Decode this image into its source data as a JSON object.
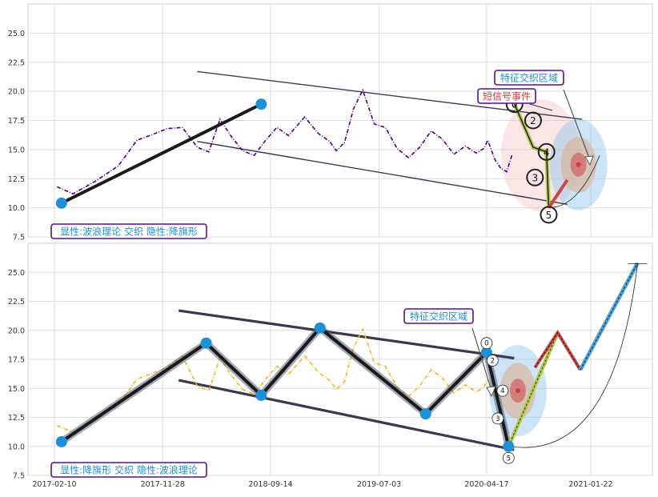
{
  "chart_data": [
    {
      "type": "line",
      "panel": "top",
      "ylim": [
        7.5,
        27.5
      ],
      "y_ticks": [
        "7.5",
        "10.0",
        "12.5",
        "15.0",
        "17.5",
        "20.0",
        "22.5",
        "25.0"
      ],
      "grid": true,
      "series_color": "#4b0082",
      "series": [
        {
          "style": "dash-dot",
          "x": [
            "2017-02-17",
            "2017-04-01",
            "2017-06-01",
            "2017-08-01",
            "2017-09-20",
            "2017-11-01",
            "2017-12-10",
            "2018-01-20",
            "2018-03-01",
            "2018-04-01",
            "2018-05-01",
            "2018-06-01",
            "2018-07-01",
            "2018-08-01",
            "2018-09-01",
            "2018-10-01",
            "2018-11-01",
            "2018-12-15",
            "2019-01-20",
            "2019-02-20",
            "2019-03-10",
            "2019-04-01",
            "2019-04-25",
            "2019-05-20",
            "2019-06-20",
            "2019-07-20",
            "2019-08-20",
            "2019-09-20",
            "2019-10-20",
            "2019-11-20",
            "2019-12-20",
            "2020-01-20",
            "2020-02-20",
            "2020-03-20",
            "2020-04-10",
            "2020-04-20",
            "2020-05-10",
            "2020-05-25",
            "2020-06-10",
            "2020-06-25"
          ],
          "y": [
            11.8,
            11.2,
            12.3,
            13.6,
            15.8,
            16.3,
            16.8,
            16.9,
            15.2,
            14.8,
            17.6,
            16.1,
            14.9,
            14.5,
            15.8,
            16.9,
            16.2,
            17.8,
            16.4,
            15.7,
            14.9,
            15.6,
            18.5,
            20.1,
            17.2,
            16.9,
            15.1,
            14.3,
            15.2,
            16.6,
            15.9,
            14.6,
            15.3,
            14.7,
            15.1,
            15.8,
            14.1,
            13.4,
            13.1,
            14.6
          ]
        }
      ],
      "wave_points": [
        {
          "x": "2017-03-01",
          "y": 10.4
        },
        {
          "x": "2018-08-20",
          "y": 18.9
        }
      ],
      "trend_channel": [
        {
          "x1": "2018-03-01",
          "y1": 21.7,
          "x2": "2020-12-30",
          "y2": 17.6
        },
        {
          "x1": "2018-03-01",
          "y1": 15.7,
          "x2": "2020-11-20",
          "y2": 10.3
        }
      ],
      "labels": [
        {
          "value": "0",
          "x": "2020-07-01",
          "y": 18.9
        },
        {
          "value": "2",
          "x": "2020-08-20",
          "y": 17.5
        },
        {
          "value": "4",
          "x": "2020-09-25",
          "y": 14.8
        },
        {
          "value": "3",
          "x": "2020-08-25",
          "y": 12.6
        },
        {
          "value": "5",
          "x": "2020-10-01",
          "y": 9.4
        }
      ],
      "annotations": {
        "top_box": "特征交织区域",
        "signal_box": "短信号事件",
        "bottom_box": "显性:波浪理论 交织 隐性:降旗形"
      }
    },
    {
      "type": "line",
      "panel": "bottom",
      "ylim": [
        7.5,
        27.5
      ],
      "y_ticks": [
        "7.5",
        "10.0",
        "12.5",
        "15.0",
        "17.5",
        "20.0",
        "22.5",
        "25.0"
      ],
      "x_ticks": [
        "2017-02-10",
        "2017-11-28",
        "2018-09-14",
        "2019-07-03",
        "2020-04-17",
        "2021-01-22"
      ],
      "grid": true,
      "series_color": "#f0b429",
      "series": [
        {
          "style": "dash-dot",
          "x": [
            "2017-02-17",
            "2017-04-01",
            "2017-06-01",
            "2017-08-01",
            "2017-09-20",
            "2017-11-01",
            "2017-12-10",
            "2018-01-20",
            "2018-03-01",
            "2018-04-01",
            "2018-05-01",
            "2018-06-01",
            "2018-07-01",
            "2018-08-01",
            "2018-09-01",
            "2018-10-01",
            "2018-11-01",
            "2018-12-15",
            "2019-01-20",
            "2019-02-20",
            "2019-03-10",
            "2019-04-01",
            "2019-04-25",
            "2019-05-20",
            "2019-06-20",
            "2019-07-20",
            "2019-08-20",
            "2019-09-20",
            "2019-10-20",
            "2019-11-20",
            "2019-12-20",
            "2020-01-20",
            "2020-02-20",
            "2020-03-20",
            "2020-04-10",
            "2020-04-20",
            "2020-05-10",
            "2020-05-25",
            "2020-06-10"
          ],
          "y": [
            11.8,
            11.2,
            12.3,
            13.6,
            15.8,
            16.3,
            16.8,
            17.8,
            15.2,
            14.8,
            17.6,
            16.1,
            14.9,
            14.5,
            15.8,
            16.9,
            16.2,
            17.8,
            16.4,
            15.7,
            14.9,
            15.6,
            18.5,
            20.1,
            17.2,
            16.9,
            15.1,
            14.3,
            15.2,
            16.6,
            15.9,
            14.6,
            15.3,
            14.7,
            15.1,
            15.8,
            14.1,
            13.4,
            10.1
          ]
        }
      ],
      "wave_points": [
        {
          "x": "2017-03-01",
          "y": 10.4
        },
        {
          "x": "2018-03-25",
          "y": 18.9
        },
        {
          "x": "2018-08-20",
          "y": 14.4
        },
        {
          "x": "2019-01-25",
          "y": 20.2
        },
        {
          "x": "2019-11-05",
          "y": 12.8
        },
        {
          "x": "2020-04-17",
          "y": 18.1
        },
        {
          "x": "2020-06-15",
          "y": 10.0
        }
      ],
      "trend_channel": [
        {
          "x1": "2018-01-10",
          "y1": 21.7,
          "x2": "2020-06-30",
          "y2": 17.6
        },
        {
          "x1": "2018-01-10",
          "y1": 15.7,
          "x2": "2020-06-30",
          "y2": 9.7
        }
      ],
      "projection": [
        {
          "x": "2020-06-15",
          "y": 10.0
        },
        {
          "x": "2020-10-25",
          "y": 19.8
        },
        {
          "x": "2020-12-25",
          "y": 16.6
        },
        {
          "x": "2021-05-28",
          "y": 25.8
        }
      ],
      "labels": [
        {
          "value": "0",
          "x": "2020-04-17",
          "y": 18.9
        },
        {
          "value": "2",
          "x": "2020-05-03",
          "y": 17.4
        },
        {
          "value": "4",
          "x": "2020-05-30",
          "y": 14.8
        },
        {
          "value": "3",
          "x": "2020-05-17",
          "y": 12.4
        },
        {
          "value": "5",
          "x": "2020-06-15",
          "y": 9.0
        }
      ],
      "annotations": {
        "top_box": "特征交织区域",
        "bottom_box": "显性:降旗形 交织 隐性:波浪理论"
      }
    }
  ],
  "colors": {
    "top_series": "#4b0082",
    "bottom_series": "#f0b429",
    "wave_point": "#1f8fd8",
    "box_border": "#5b0f8b",
    "box_text": "#1f8fd8",
    "signal_text": "#d23c3c",
    "trend_line": "#3a3a4a",
    "red_segment": "#cc4444",
    "blue_segment": "#4fa3d9"
  }
}
